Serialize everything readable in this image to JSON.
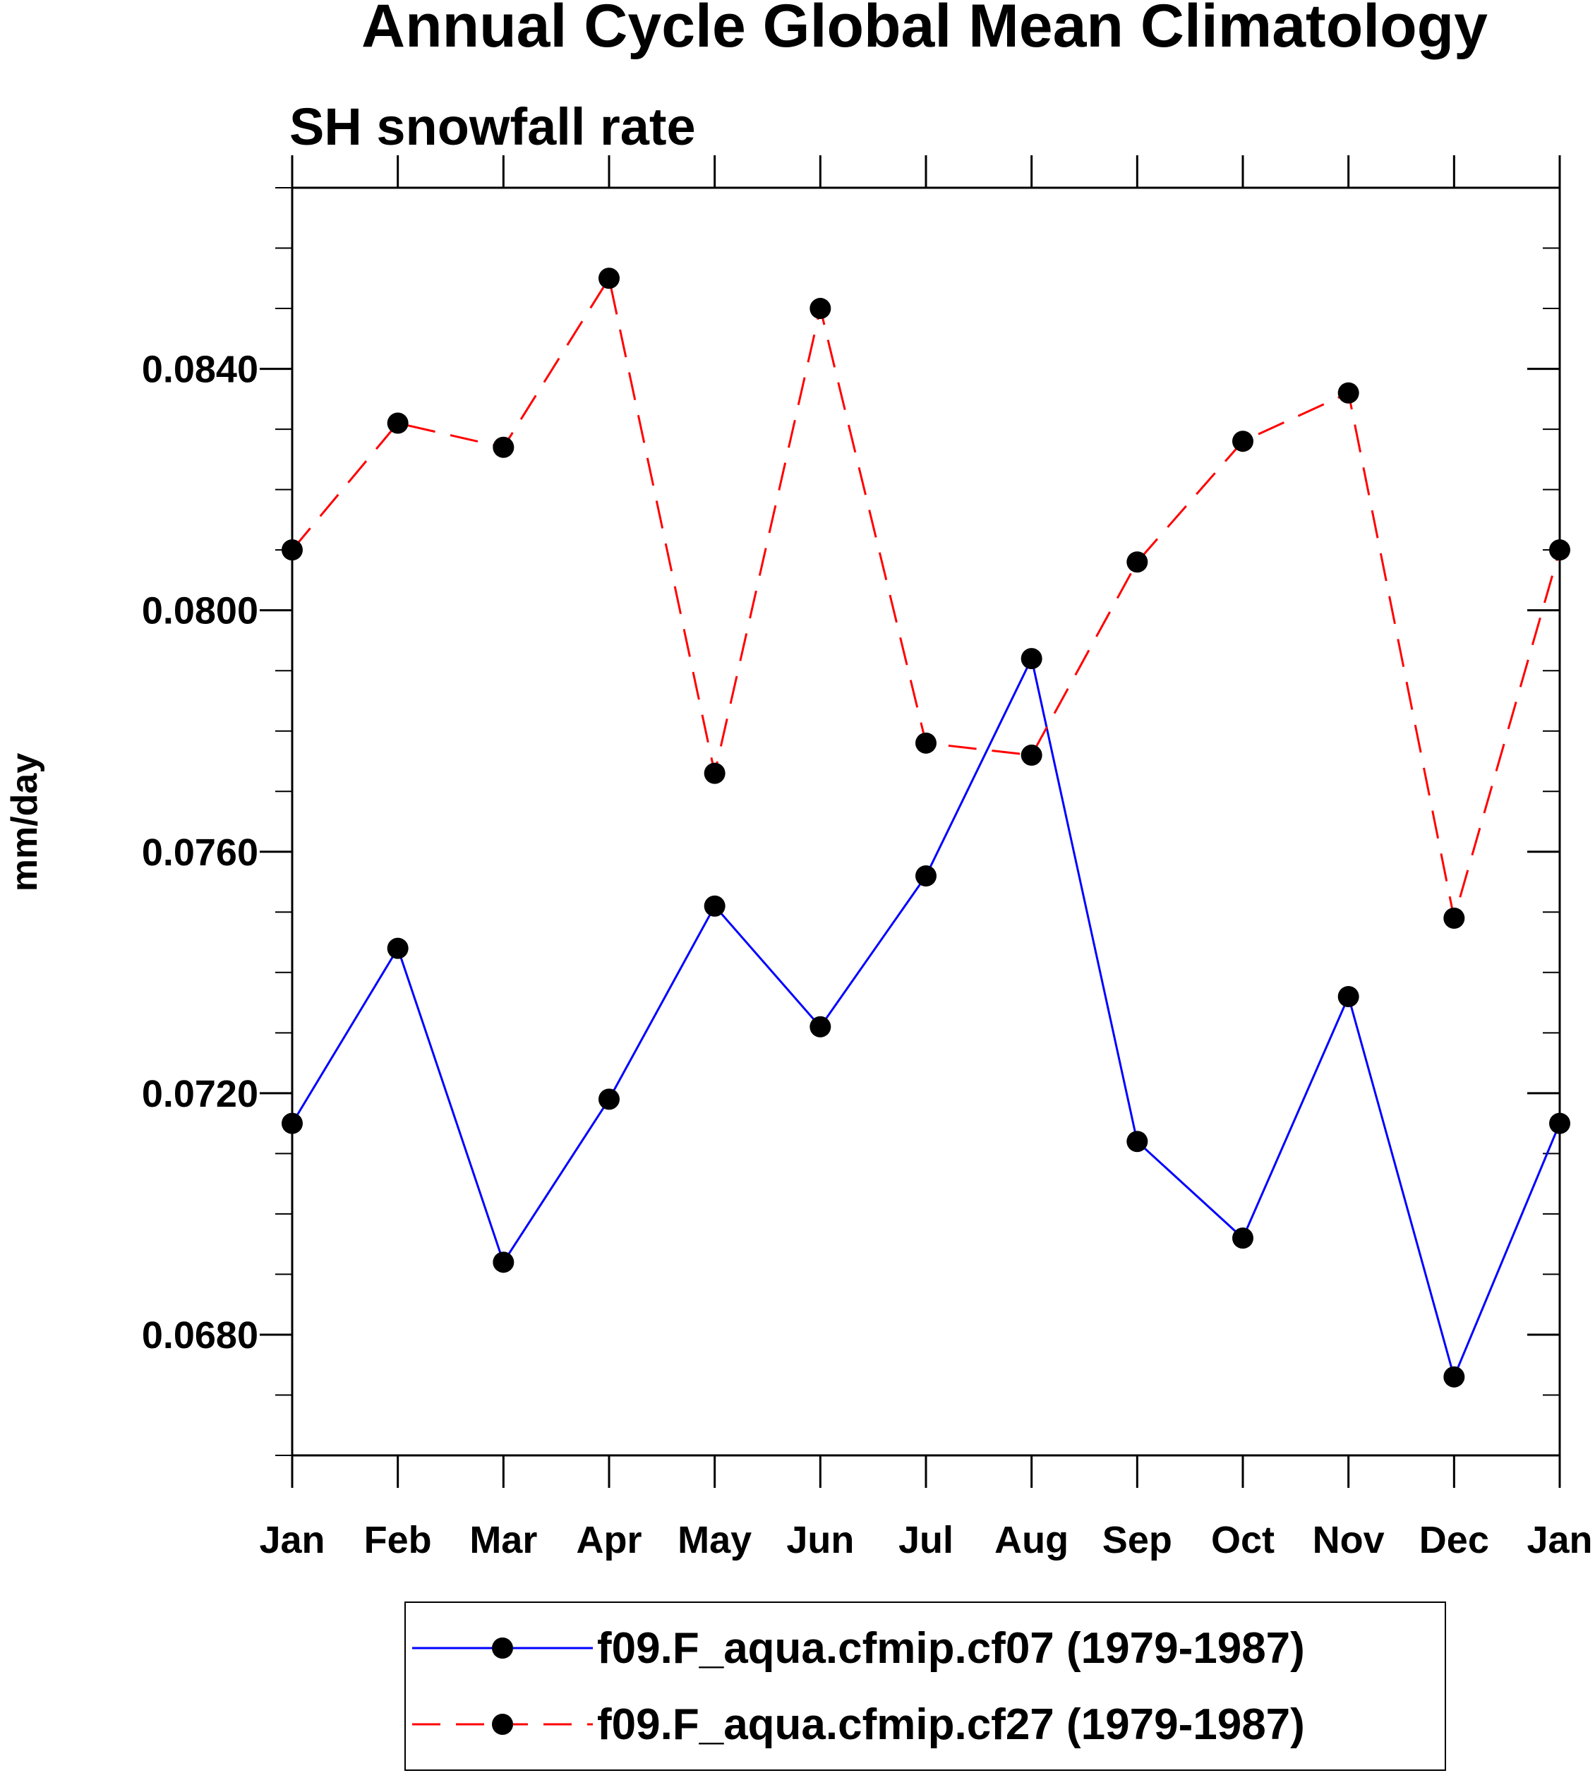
{
  "chart_data": {
    "type": "line",
    "title": "Annual Cycle Global Mean Climatology",
    "subtitle": "SH snowfall rate",
    "xlabel": "",
    "ylabel": "mm/day",
    "categories": [
      "Jan",
      "Feb",
      "Mar",
      "Apr",
      "May",
      "Jun",
      "Jul",
      "Aug",
      "Sep",
      "Oct",
      "Nov",
      "Dec",
      "Jan"
    ],
    "ylim": [
      0.066,
      0.087
    ],
    "y_ticks": [
      "0.0680",
      "0.0720",
      "0.0760",
      "0.0800",
      "0.0840"
    ],
    "y_tick_values": [
      0.068,
      0.072,
      0.076,
      0.08,
      0.084
    ],
    "y_minor_step": 0.001,
    "grid": false,
    "legend_position": "bottom-center",
    "series": [
      {
        "name": "f09.F_aqua.cfmip.cf07 (1979-1987)",
        "color": "#0000ff",
        "dash": "solid",
        "marker": "filled-circle",
        "values": [
          0.0715,
          0.0744,
          0.0692,
          0.0719,
          0.0751,
          0.0731,
          0.0756,
          0.0792,
          0.0712,
          0.0696,
          0.0736,
          0.0673,
          0.0715
        ]
      },
      {
        "name": "f09.F_aqua.cfmip.cf27 (1979-1987)",
        "color": "#ff0000",
        "dash": "dashed",
        "marker": "filled-circle",
        "values": [
          0.081,
          0.0831,
          0.0827,
          0.0855,
          0.0773,
          0.085,
          0.0778,
          0.0776,
          0.0808,
          0.0828,
          0.0836,
          0.0749,
          0.081
        ]
      }
    ]
  },
  "colors": {
    "axis": "#000000",
    "marker": "#000000",
    "background": "#ffffff"
  }
}
